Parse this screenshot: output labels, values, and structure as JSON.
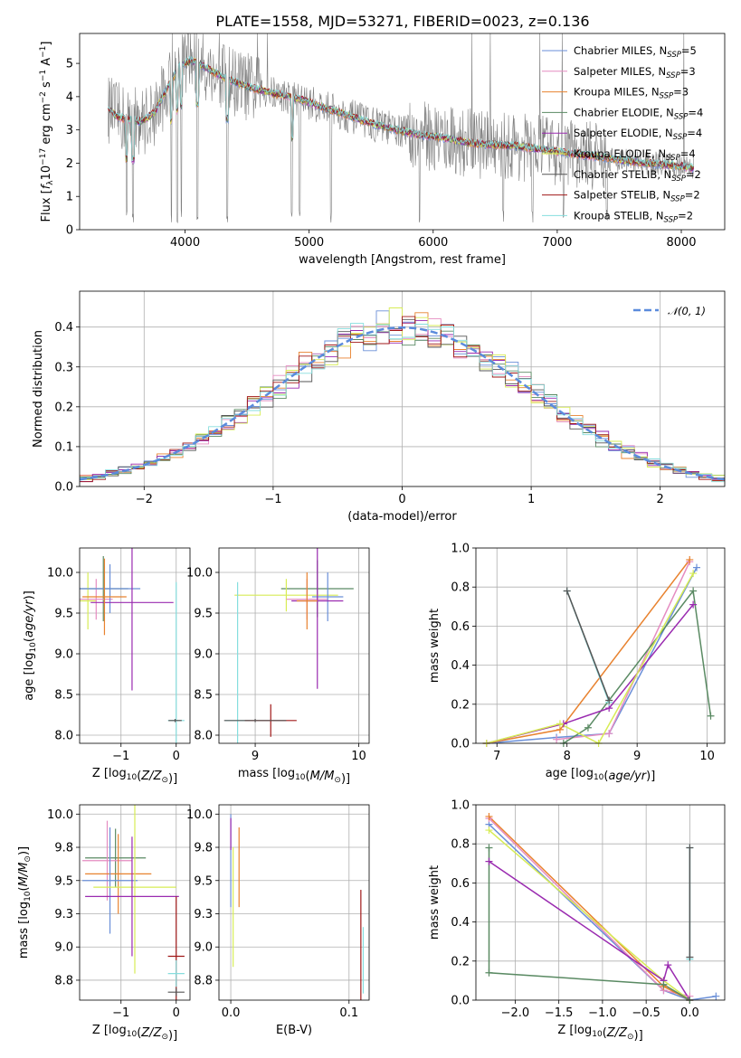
{
  "colors": {
    "chabrier_miles": "#6a8fd8",
    "salpeter_miles": "#e58cc1",
    "kroupa_miles": "#e8822f",
    "chabrier_elodie": "#5a8a63",
    "salpeter_elodie": "#9a2bb0",
    "kroupa_elodie": "#d7ec55",
    "chabrier_stelib": "#555555",
    "salpeter_stelib": "#a01818",
    "kroupa_stelib": "#86dede",
    "observed": "#808080"
  },
  "chart_data": [
    {
      "id": "spectrum",
      "type": "line",
      "title": "PLATE=1558, MJD=53271, FIBERID=0023, z=0.136",
      "xlabel": "wavelength [Angstrom, rest frame]",
      "ylabel": "Flux [fλ10⁻¹⁷ erg cm⁻² s⁻¹ A⁻¹]",
      "xlim": [
        3150,
        8350
      ],
      "ylim": [
        0,
        5.9
      ],
      "xticks": [
        4000,
        5000,
        6000,
        7000,
        8000
      ],
      "yticks": [
        0,
        1,
        2,
        3,
        4,
        5
      ],
      "legend_position": "top-right",
      "legend": [
        {
          "label": "Chabrier MILES, N",
          "sub": "SSP",
          "suffix": "=5",
          "color_key": "chabrier_miles"
        },
        {
          "label": "Salpeter MILES, N",
          "sub": "SSP",
          "suffix": "=3",
          "color_key": "salpeter_miles"
        },
        {
          "label": "Kroupa MILES, N",
          "sub": "SSP",
          "suffix": "=3",
          "color_key": "kroupa_miles"
        },
        {
          "label": "Chabrier ELODIE, N",
          "sub": "SSP",
          "suffix": "=4",
          "color_key": "chabrier_elodie"
        },
        {
          "label": "Salpeter ELODIE, N",
          "sub": "SSP",
          "suffix": "=4",
          "color_key": "salpeter_elodie"
        },
        {
          "label": "Kroupa ELODIE, N",
          "sub": "SSP",
          "suffix": "=4",
          "color_key": "kroupa_elodie"
        },
        {
          "label": "Chabrier STELIB, N",
          "sub": "SSP",
          "suffix": "=2",
          "color_key": "chabrier_stelib"
        },
        {
          "label": "Salpeter STELIB, N",
          "sub": "SSP",
          "suffix": "=2",
          "color_key": "salpeter_stelib"
        },
        {
          "label": "Kroupa STELIB, N",
          "sub": "SSP",
          "suffix": "=2",
          "color_key": "kroupa_stelib"
        }
      ],
      "continuum": [
        [
          3350,
          3.75
        ],
        [
          3450,
          3.4
        ],
        [
          3550,
          3.3
        ],
        [
          3650,
          3.25
        ],
        [
          3750,
          3.5
        ],
        [
          3850,
          4.2
        ],
        [
          3950,
          4.9
        ],
        [
          4050,
          5.1
        ],
        [
          4150,
          4.9
        ],
        [
          4300,
          4.6
        ],
        [
          4500,
          4.3
        ],
        [
          4700,
          4.1
        ],
        [
          4900,
          3.95
        ],
        [
          5100,
          3.7
        ],
        [
          5300,
          3.45
        ],
        [
          5500,
          3.2
        ],
        [
          5700,
          3.0
        ],
        [
          5900,
          2.85
        ],
        [
          6100,
          2.75
        ],
        [
          6300,
          2.6
        ],
        [
          6500,
          2.55
        ],
        [
          6700,
          2.5
        ],
        [
          6900,
          2.4
        ],
        [
          7100,
          2.3
        ],
        [
          7300,
          2.2
        ],
        [
          7500,
          2.1
        ],
        [
          7700,
          2.0
        ],
        [
          7900,
          1.95
        ],
        [
          8100,
          1.85
        ]
      ],
      "absorption_features": [
        3530,
        3580,
        3890,
        3935,
        3970,
        4100,
        4340,
        4861,
        4925,
        5175,
        5890,
        6563,
        6800,
        7050,
        7400
      ]
    },
    {
      "id": "residuals",
      "type": "line",
      "xlabel": "(data-model)/error",
      "ylabel": "Normed distribution",
      "xlim": [
        -2.5,
        2.5
      ],
      "ylim": [
        0,
        0.49
      ],
      "xticks": [
        -2,
        -1,
        0,
        1,
        2
      ],
      "yticks": [
        0.0,
        0.1,
        0.2,
        0.3,
        0.4
      ],
      "grid": true,
      "legend_position": "top-right",
      "legend_label": "𝒩(0, 1)",
      "gaussian": {
        "mean": 0,
        "sigma": 1
      }
    },
    {
      "id": "age_vs_z",
      "type": "scatter",
      "xlabel": "Z [log",
      "xlabel_sub": "10",
      "xlabel_rest": "(Z/Z",
      "xlabel_sub2": "⊙",
      "xlabel_end": ")]",
      "ylabel": "age  [log10(age/yr)]",
      "xlim": [
        -1.75,
        0.25
      ],
      "ylim": [
        7.9,
        10.3
      ],
      "xticks": [
        -1,
        0
      ],
      "yticks": [
        8.0,
        8.5,
        9.0,
        9.5,
        10.0
      ],
      "grid": true,
      "points": [
        {
          "x": -1.32,
          "y": 9.8,
          "xerr": 0.45,
          "yerr": 0.4,
          "color_key": "chabrier_elodie"
        },
        {
          "x": -1.6,
          "y": 9.65,
          "xerr": 0.15,
          "yerr": 0.35,
          "color_key": "kroupa_elodie"
        },
        {
          "x": -1.45,
          "y": 9.67,
          "xerr": 0.3,
          "yerr": 0.25,
          "color_key": "salpeter_miles"
        },
        {
          "x": -1.2,
          "y": 9.8,
          "xerr": 0.55,
          "yerr": 0.3,
          "color_key": "chabrier_miles"
        },
        {
          "x": -0.8,
          "y": 9.63,
          "xerr": 0.75,
          "yerr": 1.08,
          "color_key": "salpeter_elodie"
        },
        {
          "x": -1.3,
          "y": 9.7,
          "xerr": 0.4,
          "yerr": 0.47,
          "color_key": "kroupa_miles"
        },
        {
          "x": 0.0,
          "y": 8.18,
          "xerr": 0.15,
          "yerr": 1.7,
          "color_key": "kroupa_stelib"
        },
        {
          "x": -0.02,
          "y": 8.18,
          "xerr": 0.12,
          "yerr": 0.02,
          "color_key": "chabrier_stelib"
        }
      ]
    },
    {
      "id": "age_vs_mass",
      "type": "scatter",
      "xlabel": "mass [log10(M/M⊙)]",
      "ylabel": "",
      "xlim": [
        8.65,
        10.1
      ],
      "ylim": [
        7.9,
        10.3
      ],
      "xticks": [
        9,
        10
      ],
      "yticks": [
        8.0,
        8.5,
        9.0,
        9.5,
        10.0
      ],
      "grid": true,
      "points": [
        {
          "x": 9.6,
          "y": 9.8,
          "xerr": 0.35,
          "yerr": 0.35,
          "color_key": "chabrier_elodie"
        },
        {
          "x": 9.3,
          "y": 9.72,
          "xerr": 0.5,
          "yerr": 0.2,
          "color_key": "kroupa_elodie"
        },
        {
          "x": 9.5,
          "y": 9.67,
          "xerr": 0.2,
          "yerr": 0.25,
          "color_key": "salpeter_miles"
        },
        {
          "x": 9.7,
          "y": 9.7,
          "xerr": 0.15,
          "yerr": 0.3,
          "color_key": "chabrier_miles"
        },
        {
          "x": 9.6,
          "y": 9.65,
          "xerr": 0.25,
          "yerr": 1.08,
          "color_key": "salpeter_elodie"
        },
        {
          "x": 9.5,
          "y": 9.65,
          "xerr": 0.1,
          "yerr": 0.35,
          "color_key": "kroupa_miles"
        },
        {
          "x": 8.83,
          "y": 8.18,
          "xerr": 0.12,
          "yerr": 1.7,
          "color_key": "kroupa_stelib"
        },
        {
          "x": 9.15,
          "y": 8.18,
          "xerr": 0.25,
          "yerr": 0.2,
          "color_key": "salpeter_stelib"
        },
        {
          "x": 9.0,
          "y": 8.18,
          "xerr": 0.3,
          "yerr": 0.02,
          "color_key": "chabrier_stelib"
        }
      ]
    },
    {
      "id": "weight_vs_age",
      "type": "line",
      "xlabel": "age  [log10(age/yr)]",
      "ylabel": "mass weight",
      "xlim": [
        6.7,
        10.25
      ],
      "ylim": [
        0,
        1
      ],
      "xticks": [
        7,
        8,
        9,
        10
      ],
      "yticks": [
        0.0,
        0.2,
        0.4,
        0.6,
        0.8,
        1.0
      ],
      "grid": true,
      "series": [
        {
          "color_key": "chabrier_miles",
          "x": [
            6.85,
            7.85,
            8.6,
            9.85
          ],
          "y": [
            0.0,
            0.03,
            0.05,
            0.9
          ]
        },
        {
          "color_key": "salpeter_miles",
          "x": [
            7.85,
            8.6,
            9.75
          ],
          "y": [
            0.02,
            0.05,
            0.93
          ]
        },
        {
          "color_key": "kroupa_miles",
          "x": [
            6.85,
            7.9,
            9.75
          ],
          "y": [
            0.0,
            0.07,
            0.94
          ]
        },
        {
          "color_key": "chabrier_elodie",
          "x": [
            7.95,
            8.3,
            9.8,
            10.05
          ],
          "y": [
            0.0,
            0.08,
            0.78,
            0.14
          ]
        },
        {
          "color_key": "salpeter_elodie",
          "x": [
            6.85,
            7.95,
            8.6,
            9.8
          ],
          "y": [
            0.0,
            0.1,
            0.18,
            0.71
          ]
        },
        {
          "color_key": "kroupa_elodie",
          "x": [
            6.85,
            7.9,
            8.45,
            9.8
          ],
          "y": [
            0.0,
            0.1,
            0.0,
            0.87
          ]
        },
        {
          "color_key": "kroupa_stelib",
          "x": [
            8.0,
            8.6
          ],
          "y": [
            0.78,
            0.21
          ]
        },
        {
          "color_key": "chabrier_stelib",
          "x": [
            8.0,
            8.6
          ],
          "y": [
            0.78,
            0.22
          ]
        }
      ]
    },
    {
      "id": "mass_vs_z",
      "type": "scatter",
      "xlabel": "Z [log10(Z/Z⊙)]",
      "ylabel": "mass [log10(M/M⊙)]",
      "xlim": [
        -1.75,
        0.25
      ],
      "ylim": [
        8.6,
        10.07
      ],
      "xticks": [
        -1,
        0
      ],
      "yticks": [
        8.75,
        9.0,
        9.25,
        9.5,
        9.75,
        10.0
      ],
      "grid": true,
      "points": [
        {
          "x": -1.1,
          "y": 9.67,
          "xerr": 0.55,
          "yerr": 0.22,
          "color_key": "chabrier_elodie"
        },
        {
          "x": -1.25,
          "y": 9.65,
          "xerr": 0.45,
          "yerr": 0.3,
          "color_key": "salpeter_miles"
        },
        {
          "x": -1.05,
          "y": 9.55,
          "xerr": 0.6,
          "yerr": 0.3,
          "color_key": "kroupa_miles"
        },
        {
          "x": -1.2,
          "y": 9.5,
          "xerr": 0.5,
          "yerr": 0.4,
          "color_key": "chabrier_miles"
        },
        {
          "x": -0.75,
          "y": 9.45,
          "xerr": 0.75,
          "yerr": 0.65,
          "color_key": "kroupa_elodie"
        },
        {
          "x": -0.8,
          "y": 9.38,
          "xerr": 0.85,
          "yerr": 0.45,
          "color_key": "salpeter_elodie"
        },
        {
          "x": 0.0,
          "y": 8.93,
          "xerr": 0.15,
          "yerr": 0.45,
          "color_key": "salpeter_stelib"
        },
        {
          "x": 0.0,
          "y": 8.8,
          "xerr": 0.15,
          "yerr": 0.1,
          "color_key": "kroupa_stelib"
        },
        {
          "x": 0.0,
          "y": 8.66,
          "xerr": 0.15,
          "yerr": 0.03,
          "color_key": "chabrier_stelib"
        }
      ]
    },
    {
      "id": "mass_vs_ebv",
      "type": "scatter",
      "xlabel": "E(B-V)",
      "ylabel": "",
      "xlim": [
        -0.01,
        0.117
      ],
      "ylim": [
        8.6,
        10.07
      ],
      "xticks": [
        0.0,
        0.1
      ],
      "yticks": [
        8.75,
        9.0,
        9.25,
        9.5,
        9.75,
        10.0
      ],
      "grid": true,
      "points": [
        {
          "x": 0.0,
          "y": 9.65,
          "xerr": 0,
          "yerr": 0.35,
          "color_key": "chabrier_miles"
        },
        {
          "x": 0.0,
          "y": 9.85,
          "xerr": 0,
          "yerr": 0.12,
          "color_key": "salpeter_elodie"
        },
        {
          "x": 0.007,
          "y": 9.6,
          "xerr": 0,
          "yerr": 0.3,
          "color_key": "kroupa_miles"
        },
        {
          "x": 0.002,
          "y": 9.3,
          "xerr": 0,
          "yerr": 0.45,
          "color_key": "kroupa_elodie"
        },
        {
          "x": 0.11,
          "y": 9.0,
          "xerr": 0,
          "yerr": 0.43,
          "color_key": "salpeter_stelib"
        },
        {
          "x": 0.112,
          "y": 8.9,
          "xerr": 0,
          "yerr": 0.25,
          "color_key": "kroupa_stelib"
        }
      ]
    },
    {
      "id": "weight_vs_z",
      "type": "line",
      "xlabel": "Z [log10(Z/Z⊙)]",
      "ylabel": "mass weight",
      "xlim": [
        -2.45,
        0.4
      ],
      "ylim": [
        0,
        1
      ],
      "xticks": [
        -2.0,
        -1.5,
        -1.0,
        -0.5,
        0.0
      ],
      "yticks": [
        0.0,
        0.2,
        0.4,
        0.6,
        0.8,
        1.0
      ],
      "grid": true,
      "series": [
        {
          "color_key": "chabrier_miles",
          "x": [
            -2.3,
            -0.3,
            0.0,
            0.3
          ],
          "y": [
            0.9,
            0.05,
            0.0,
            0.02
          ]
        },
        {
          "color_key": "salpeter_miles",
          "x": [
            -2.3,
            -0.3,
            0.0
          ],
          "y": [
            0.93,
            0.05,
            0.02
          ]
        },
        {
          "color_key": "kroupa_miles",
          "x": [
            -2.3,
            -0.3,
            0.0
          ],
          "y": [
            0.94,
            0.07,
            0.0
          ]
        },
        {
          "color_key": "kroupa_elodie",
          "x": [
            -2.3,
            -0.3,
            0.0
          ],
          "y": [
            0.87,
            0.1,
            0.0
          ]
        },
        {
          "color_key": "salpeter_elodie",
          "x": [
            -2.3,
            -0.3,
            -0.25,
            0.0
          ],
          "y": [
            0.71,
            0.1,
            0.18,
            0.0
          ]
        },
        {
          "color_key": "chabrier_elodie",
          "x": [
            -2.3,
            -2.3,
            -0.3,
            0.0
          ],
          "y": [
            0.78,
            0.14,
            0.08,
            0.0
          ]
        },
        {
          "color_key": "kroupa_stelib",
          "x": [
            0.0,
            0.0
          ],
          "y": [
            0.78,
            0.21
          ]
        },
        {
          "color_key": "chabrier_stelib",
          "x": [
            0.0,
            0.0
          ],
          "y": [
            0.78,
            0.22
          ]
        }
      ]
    }
  ]
}
